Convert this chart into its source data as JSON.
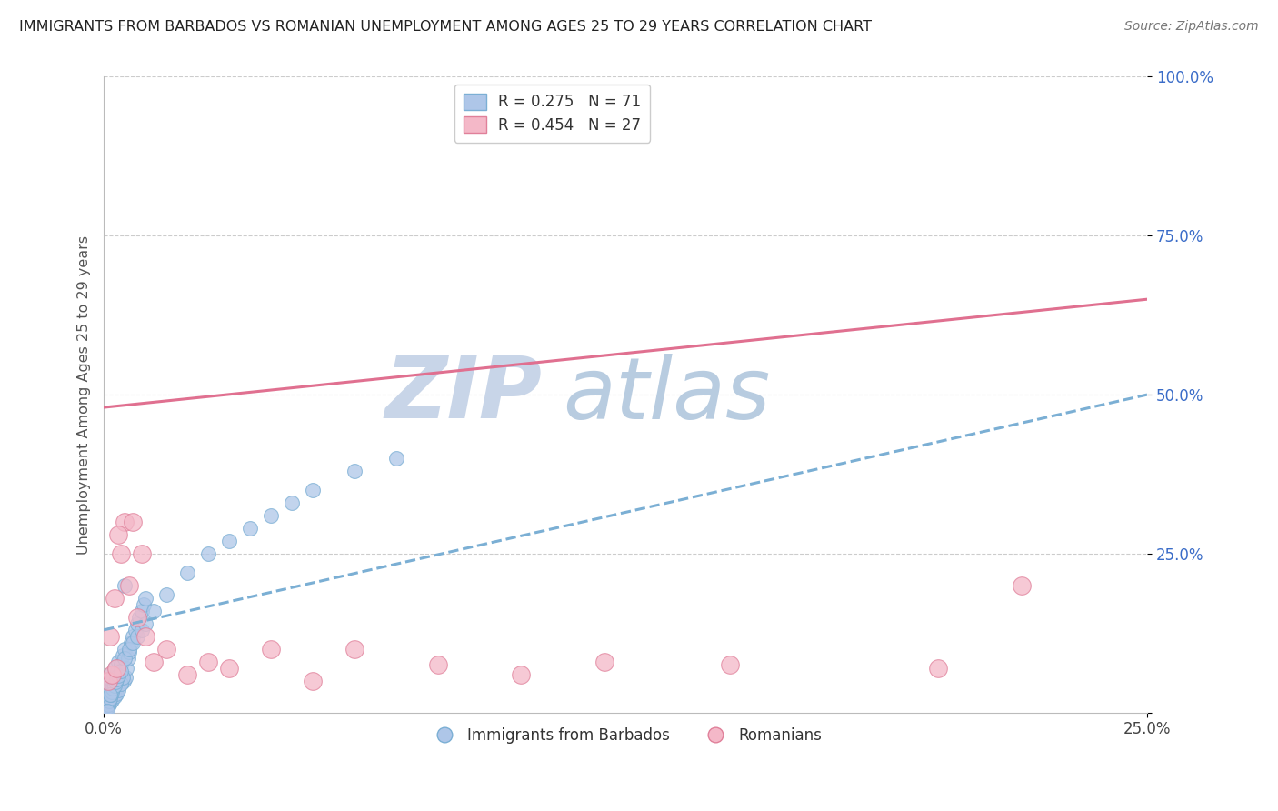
{
  "title": "IMMIGRANTS FROM BARBADOS VS ROMANIAN UNEMPLOYMENT AMONG AGES 25 TO 29 YEARS CORRELATION CHART",
  "source": "Source: ZipAtlas.com",
  "ylabel": "Unemployment Among Ages 25 to 29 years",
  "xlim": [
    0.0,
    0.25
  ],
  "ylim": [
    0.0,
    1.0
  ],
  "yticks": [
    0.0,
    0.25,
    0.5,
    0.75,
    1.0
  ],
  "ytick_labels": [
    "",
    "25.0%",
    "50.0%",
    "75.0%",
    "100.0%"
  ],
  "legend_entries": [
    {
      "label": "R = 0.275   N = 71",
      "facecolor": "#aec6e8",
      "edgecolor": "#7bafd4"
    },
    {
      "label": "R = 0.454   N = 27",
      "facecolor": "#f4b8c8",
      "edgecolor": "#e0809a"
    }
  ],
  "legend_bottom": [
    "Immigrants from Barbados",
    "Romanians"
  ],
  "watermark_zip": "ZIP",
  "watermark_atlas": "atlas",
  "title_color": "#222222",
  "source_color": "#777777",
  "blue_scatter_color": "#aec6e8",
  "blue_scatter_edge": "#7bafd4",
  "pink_scatter_color": "#f4b8c8",
  "pink_scatter_edge": "#e0809a",
  "blue_line_color": "#7bafd4",
  "pink_line_color": "#e07090",
  "grid_color": "#cccccc",
  "watermark_zip_color": "#c8d5e8",
  "watermark_atlas_color": "#b8cce0",
  "background_color": "#ffffff",
  "blue_scatter_x": [
    0.0005,
    0.001,
    0.0012,
    0.0015,
    0.0018,
    0.002,
    0.0022,
    0.0025,
    0.0028,
    0.003,
    0.0032,
    0.0035,
    0.0038,
    0.004,
    0.0042,
    0.0045,
    0.0048,
    0.005,
    0.0052,
    0.0055,
    0.0058,
    0.006,
    0.0065,
    0.007,
    0.0075,
    0.008,
    0.0085,
    0.009,
    0.0095,
    0.01,
    0.001,
    0.0015,
    0.002,
    0.0025,
    0.003,
    0.0035,
    0.004,
    0.0045,
    0.0005,
    0.0008,
    0.001,
    0.0012,
    0.0015,
    0.0018,
    0.002,
    0.0022,
    0.0025,
    0.0028,
    0.003,
    0.0035,
    0.004,
    0.005,
    0.006,
    0.007,
    0.008,
    0.009,
    0.01,
    0.012,
    0.015,
    0.02,
    0.025,
    0.03,
    0.035,
    0.04,
    0.045,
    0.05,
    0.06,
    0.07,
    0.005,
    0.0015,
    0.0008
  ],
  "blue_scatter_y": [
    0.02,
    0.035,
    0.045,
    0.06,
    0.025,
    0.04,
    0.055,
    0.07,
    0.03,
    0.05,
    0.065,
    0.08,
    0.045,
    0.06,
    0.075,
    0.09,
    0.05,
    0.1,
    0.055,
    0.07,
    0.085,
    0.095,
    0.11,
    0.12,
    0.13,
    0.14,
    0.15,
    0.16,
    0.17,
    0.18,
    0.01,
    0.015,
    0.02,
    0.025,
    0.03,
    0.035,
    0.045,
    0.055,
    0.005,
    0.008,
    0.012,
    0.018,
    0.022,
    0.028,
    0.032,
    0.038,
    0.042,
    0.048,
    0.052,
    0.058,
    0.065,
    0.085,
    0.1,
    0.11,
    0.12,
    0.13,
    0.14,
    0.16,
    0.185,
    0.22,
    0.25,
    0.27,
    0.29,
    0.31,
    0.33,
    0.35,
    0.38,
    0.4,
    0.2,
    0.028,
    0.003
  ],
  "pink_scatter_x": [
    0.001,
    0.002,
    0.003,
    0.0015,
    0.0025,
    0.004,
    0.005,
    0.006,
    0.008,
    0.01,
    0.012,
    0.015,
    0.02,
    0.025,
    0.03,
    0.04,
    0.05,
    0.06,
    0.08,
    0.1,
    0.12,
    0.15,
    0.2,
    0.22,
    0.0035,
    0.007,
    0.009
  ],
  "pink_scatter_y": [
    0.05,
    0.06,
    0.07,
    0.12,
    0.18,
    0.25,
    0.3,
    0.2,
    0.15,
    0.12,
    0.08,
    0.1,
    0.06,
    0.08,
    0.07,
    0.1,
    0.05,
    0.1,
    0.075,
    0.06,
    0.08,
    0.075,
    0.07,
    0.2,
    0.28,
    0.3,
    0.25
  ],
  "blue_line_y0": 0.13,
  "blue_line_y1": 0.5,
  "pink_line_y0": 0.48,
  "pink_line_y1": 0.65
}
